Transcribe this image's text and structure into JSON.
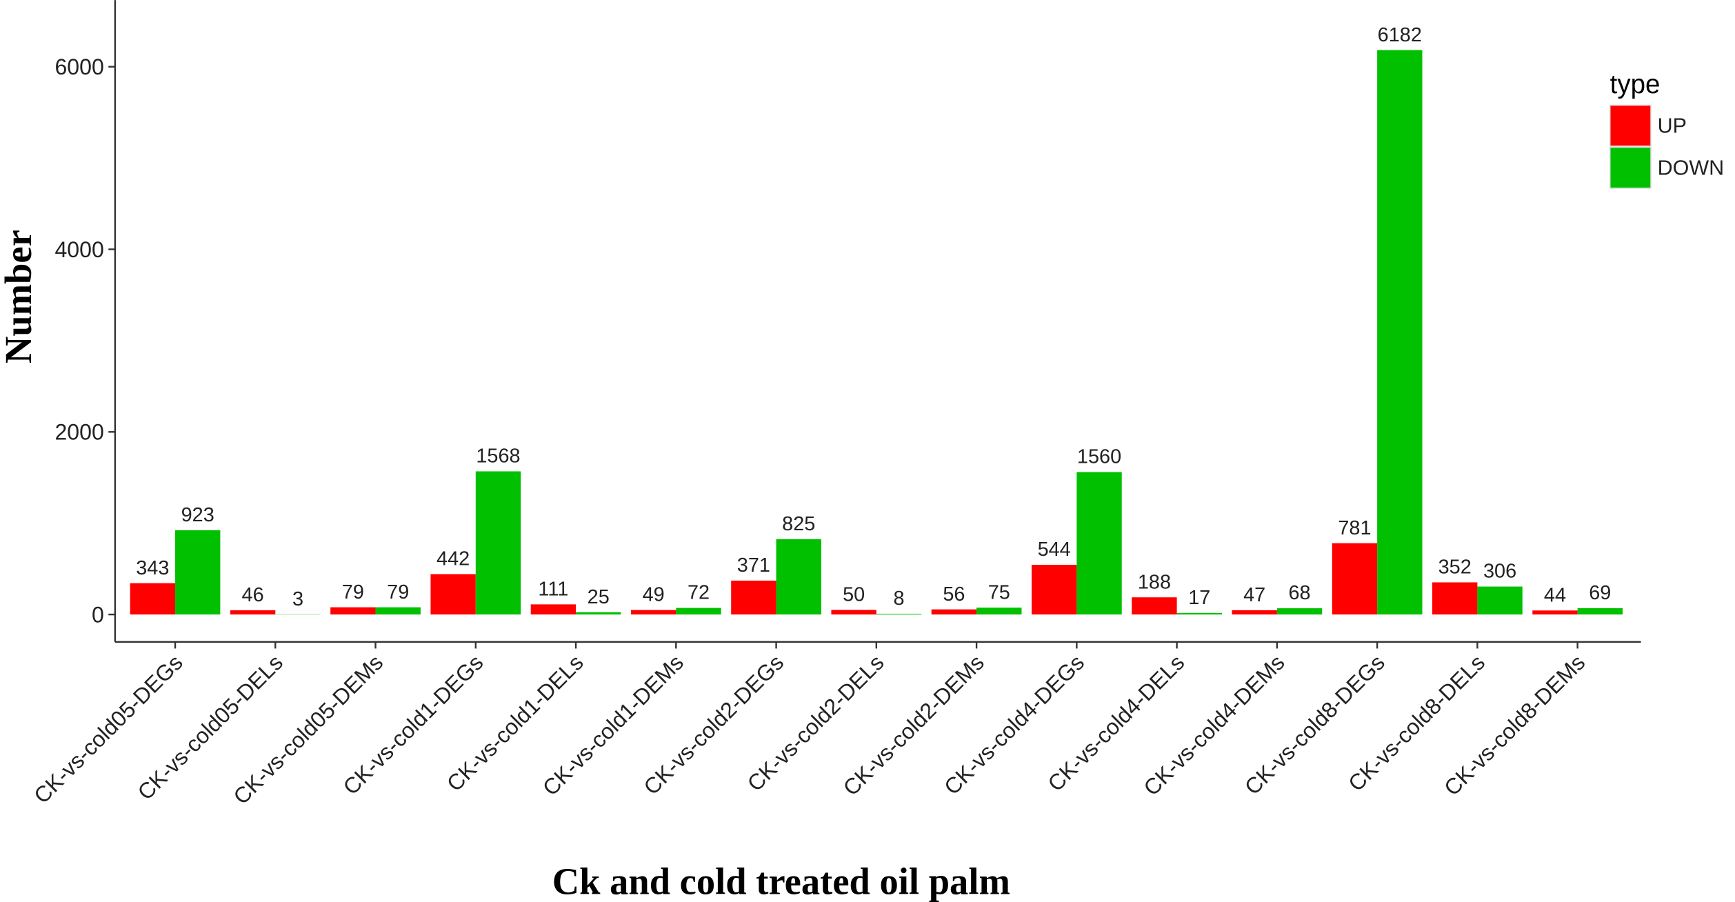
{
  "chart_data": {
    "type": "bar",
    "x_label": "Ck and cold treated oil palm",
    "y_label": "Number",
    "categories": [
      "CK-vs-cold05-DEGs",
      "CK-vs-cold05-DELs",
      "CK-vs-cold05-DEMs",
      "CK-vs-cold1-DEGs",
      "CK-vs-cold1-DELs",
      "CK-vs-cold1-DEMs",
      "CK-vs-cold2-DEGs",
      "CK-vs-cold2-DELs",
      "CK-vs-cold2-DEMs",
      "CK-vs-cold4-DEGs",
      "CK-vs-cold4-DELs",
      "CK-vs-cold4-DEMs",
      "CK-vs-cold8-DEGs",
      "CK-vs-cold8-DELs",
      "CK-vs-cold8-DEMs"
    ],
    "series": [
      {
        "name": "UP",
        "color": "#ff0000",
        "values": [
          343,
          46,
          79,
          442,
          111,
          49,
          371,
          50,
          56,
          544,
          188,
          47,
          781,
          352,
          44
        ]
      },
      {
        "name": "DOWN",
        "color": "#00c000",
        "values": [
          923,
          3,
          79,
          1568,
          25,
          72,
          825,
          8,
          75,
          1560,
          17,
          68,
          6182,
          306,
          69
        ]
      }
    ],
    "legend_title": "type",
    "legend_position": "right",
    "ylim": [
      -300,
      6730
    ],
    "yticks": [
      0,
      2000,
      4000,
      6000
    ],
    "grid": false
  }
}
